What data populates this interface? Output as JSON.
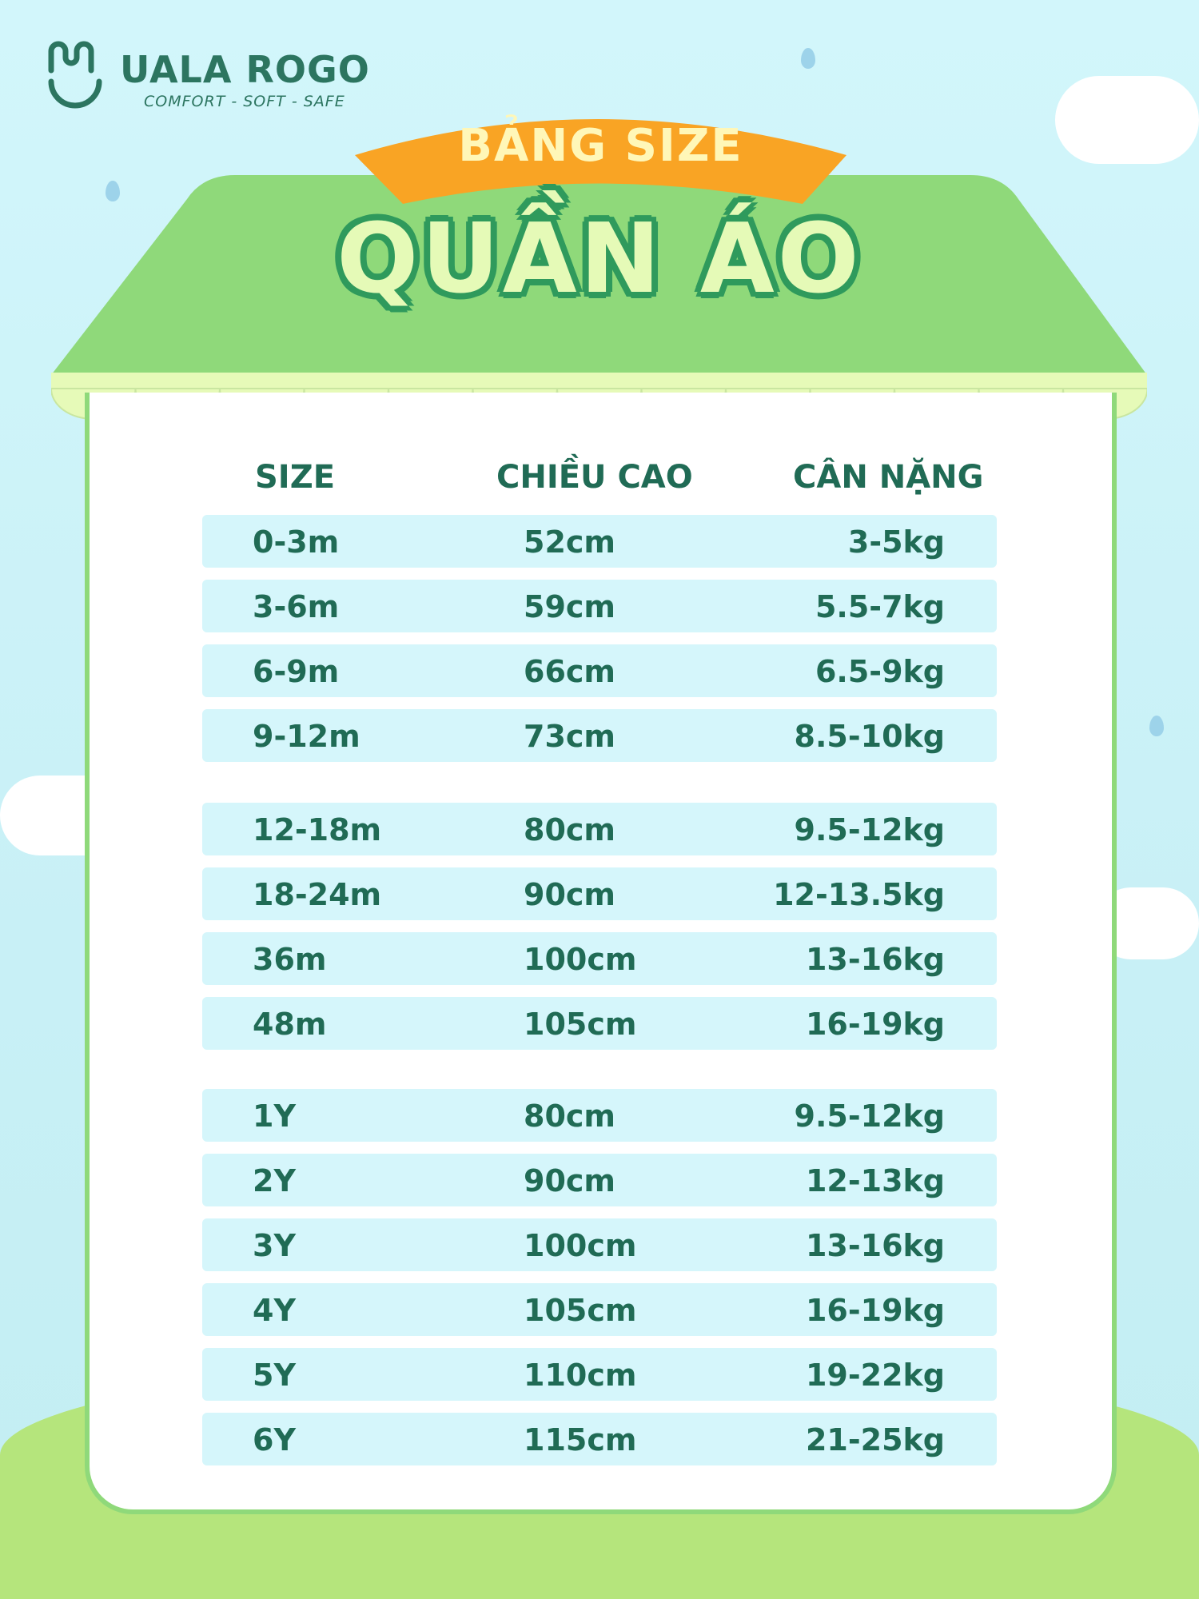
{
  "brand": {
    "name": "UALA ROGO",
    "tagline": "COMFORT - SOFT - SAFE"
  },
  "banner": {
    "subtitle": "BẢNG SIZE",
    "title": "QUẦN ÁO"
  },
  "colors": {
    "text": "#206b55",
    "roof": "#8fd97a",
    "banner": "#f9a424",
    "row": "#d5f6fb",
    "sky": "#d2f6fb"
  },
  "table": {
    "headers": [
      "SIZE",
      "CHIỀU CAO",
      "CÂN NẶNG"
    ],
    "rows": [
      [
        "0-3m",
        "52cm",
        "3-5kg"
      ],
      [
        "3-6m",
        "59cm",
        "5.5-7kg"
      ],
      [
        "6-9m",
        "66cm",
        "6.5-9kg"
      ],
      [
        "9-12m",
        "73cm",
        "8.5-10kg"
      ],
      [
        "12-18m",
        "80cm",
        "9.5-12kg"
      ],
      [
        "18-24m",
        "90cm",
        "12-13.5kg"
      ],
      [
        "36m",
        "100cm",
        "13-16kg"
      ],
      [
        "48m",
        "105cm",
        "16-19kg"
      ],
      [
        "1Y",
        "80cm",
        "9.5-12kg"
      ],
      [
        "2Y",
        "90cm",
        "12-13kg"
      ],
      [
        "3Y",
        "100cm",
        "13-16kg"
      ],
      [
        "4Y",
        "105cm",
        "16-19kg"
      ],
      [
        "5Y",
        "110cm",
        "19-22kg"
      ],
      [
        "6Y",
        "115cm",
        "21-25kg"
      ]
    ]
  }
}
